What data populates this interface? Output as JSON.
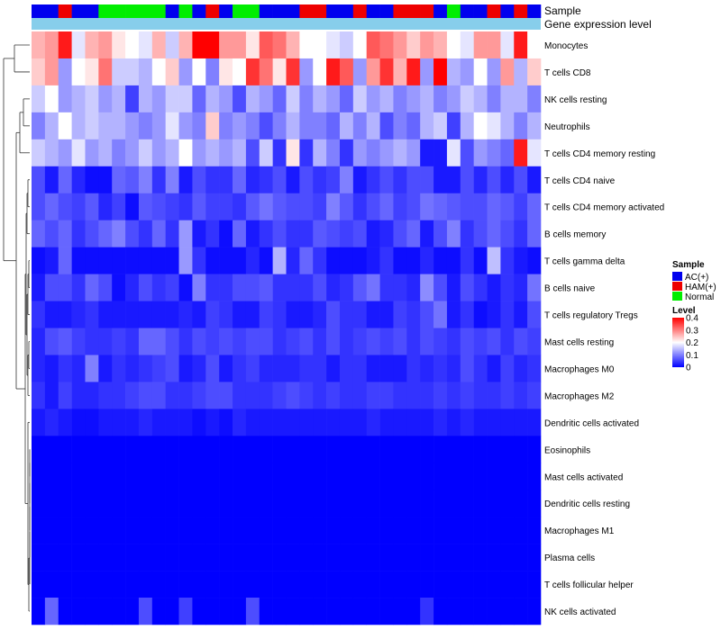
{
  "chart_data": {
    "type": "heatmap",
    "title": "",
    "annotation_tracks": [
      "Sample",
      "Gene expression level"
    ],
    "sample_groups": [
      "AC(+)",
      "AC(+)",
      "HAM(+)",
      "AC(+)",
      "AC(+)",
      "Normal",
      "Normal",
      "Normal",
      "Normal",
      "Normal",
      "AC(+)",
      "Normal",
      "AC(+)",
      "HAM(+)",
      "AC(+)",
      "Normal",
      "Normal",
      "AC(+)",
      "AC(+)",
      "AC(+)",
      "HAM(+)",
      "HAM(+)",
      "AC(+)",
      "AC(+)",
      "HAM(+)",
      "AC(+)",
      "AC(+)",
      "HAM(+)",
      "HAM(+)",
      "HAM(+)",
      "AC(+)",
      "Normal",
      "AC(+)",
      "AC(+)",
      "HAM(+)",
      "AC(+)",
      "HAM(+)",
      "AC(+)"
    ],
    "rows": [
      "Monocytes",
      "T cells CD8",
      "NK cells resting",
      "Neutrophils",
      "T cells CD4 memory resting",
      "T cells CD4 naive",
      "T cells CD4 memory activated",
      "B cells memory",
      "T cells gamma delta",
      "B cells naive",
      "T cells regulatory  Tregs",
      "Mast cells resting",
      "Macrophages M0",
      "Macrophages M2",
      "Dendritic cells activated",
      "Eosinophils",
      "Mast cells activated",
      "Dendritic cells resting",
      "Macrophages M1",
      "Plasma cells",
      "T cells follicular helper",
      "NK cells activated"
    ],
    "values": [
      [
        0.26,
        0.28,
        0.38,
        0.18,
        0.26,
        0.28,
        0.22,
        0.2,
        0.18,
        0.26,
        0.16,
        0.26,
        0.4,
        0.4,
        0.28,
        0.28,
        0.22,
        0.33,
        0.31,
        0.26,
        0.2,
        0.2,
        0.18,
        0.16,
        0.2,
        0.33,
        0.31,
        0.28,
        0.24,
        0.28,
        0.26,
        0.2,
        0.18,
        0.28,
        0.28,
        0.18,
        0.38,
        0.2
      ],
      [
        0.24,
        0.28,
        0.12,
        0.2,
        0.22,
        0.31,
        0.16,
        0.16,
        0.14,
        0.2,
        0.24,
        0.12,
        0.2,
        0.1,
        0.22,
        0.2,
        0.36,
        0.31,
        0.22,
        0.36,
        0.12,
        0.2,
        0.38,
        0.33,
        0.12,
        0.28,
        0.36,
        0.26,
        0.38,
        0.12,
        0.4,
        0.14,
        0.12,
        0.2,
        0.12,
        0.28,
        0.14,
        0.24
      ],
      [
        0.16,
        0.2,
        0.12,
        0.14,
        0.16,
        0.12,
        0.14,
        0.05,
        0.14,
        0.12,
        0.16,
        0.16,
        0.08,
        0.14,
        0.12,
        0.06,
        0.14,
        0.12,
        0.08,
        0.16,
        0.1,
        0.14,
        0.12,
        0.08,
        0.16,
        0.12,
        0.14,
        0.1,
        0.12,
        0.14,
        0.1,
        0.12,
        0.16,
        0.14,
        0.1,
        0.14,
        0.14,
        0.1
      ],
      [
        0.1,
        0.14,
        0.2,
        0.14,
        0.16,
        0.14,
        0.14,
        0.12,
        0.1,
        0.12,
        0.18,
        0.12,
        0.1,
        0.24,
        0.1,
        0.12,
        0.1,
        0.06,
        0.1,
        0.14,
        0.1,
        0.1,
        0.08,
        0.14,
        0.1,
        0.14,
        0.06,
        0.1,
        0.08,
        0.14,
        0.16,
        0.05,
        0.14,
        0.2,
        0.18,
        0.14,
        0.1,
        0.14
      ],
      [
        0.16,
        0.14,
        0.12,
        0.18,
        0.12,
        0.14,
        0.1,
        0.12,
        0.16,
        0.12,
        0.14,
        0.2,
        0.12,
        0.14,
        0.12,
        0.14,
        0.06,
        0.16,
        0.04,
        0.22,
        0.04,
        0.14,
        0.1,
        0.04,
        0.12,
        0.1,
        0.12,
        0.14,
        0.12,
        0.02,
        0.02,
        0.18,
        0.06,
        0.12,
        0.1,
        0.08,
        0.38,
        0.18
      ],
      [
        0.06,
        0.02,
        0.08,
        0.03,
        0.01,
        0.01,
        0.08,
        0.07,
        0.1,
        0.04,
        0.1,
        0.02,
        0.06,
        0.04,
        0.04,
        0.08,
        0.03,
        0.04,
        0.06,
        0.02,
        0.06,
        0.04,
        0.05,
        0.1,
        0.02,
        0.04,
        0.06,
        0.04,
        0.06,
        0.06,
        0.02,
        0.02,
        0.06,
        0.03,
        0.06,
        0.03,
        0.06,
        0.02
      ],
      [
        0.06,
        0.08,
        0.06,
        0.05,
        0.07,
        0.03,
        0.05,
        0.01,
        0.07,
        0.06,
        0.05,
        0.04,
        0.07,
        0.05,
        0.05,
        0.04,
        0.07,
        0.09,
        0.07,
        0.06,
        0.06,
        0.05,
        0.1,
        0.07,
        0.04,
        0.06,
        0.08,
        0.05,
        0.06,
        0.09,
        0.08,
        0.07,
        0.06,
        0.06,
        0.08,
        0.07,
        0.05,
        0.08
      ],
      [
        0.08,
        0.06,
        0.08,
        0.04,
        0.06,
        0.08,
        0.1,
        0.06,
        0.04,
        0.08,
        0.04,
        0.12,
        0.02,
        0.04,
        0.01,
        0.08,
        0.02,
        0.04,
        0.06,
        0.04,
        0.04,
        0.07,
        0.06,
        0.05,
        0.06,
        0.02,
        0.03,
        0.06,
        0.08,
        0.02,
        0.06,
        0.1,
        0.04,
        0.06,
        0.08,
        0.06,
        0.04,
        0.08
      ],
      [
        0.01,
        0.02,
        0.08,
        0.01,
        0.01,
        0.01,
        0.01,
        0.01,
        0.01,
        0.01,
        0.01,
        0.12,
        0.04,
        0.01,
        0.01,
        0.01,
        0.03,
        0.01,
        0.14,
        0.03,
        0.08,
        0.04,
        0.01,
        0.01,
        0.01,
        0.02,
        0.04,
        0.01,
        0.01,
        0.03,
        0.01,
        0.01,
        0.04,
        0.01,
        0.15,
        0.04,
        0.02,
        0.01
      ],
      [
        0.02,
        0.06,
        0.06,
        0.04,
        0.08,
        0.06,
        0.01,
        0.03,
        0.06,
        0.04,
        0.05,
        0.01,
        0.1,
        0.04,
        0.04,
        0.06,
        0.06,
        0.07,
        0.04,
        0.04,
        0.04,
        0.06,
        0.03,
        0.04,
        0.07,
        0.09,
        0.04,
        0.04,
        0.03,
        0.11,
        0.06,
        0.02,
        0.06,
        0.04,
        0.02,
        0.04,
        0.03,
        0.09
      ],
      [
        0.04,
        0.02,
        0.02,
        0.03,
        0.04,
        0.02,
        0.02,
        0.02,
        0.02,
        0.02,
        0.02,
        0.03,
        0.02,
        0.05,
        0.04,
        0.02,
        0.02,
        0.05,
        0.04,
        0.02,
        0.02,
        0.03,
        0.06,
        0.04,
        0.04,
        0.02,
        0.02,
        0.05,
        0.04,
        0.06,
        0.09,
        0.02,
        0.04,
        0.01,
        0.02,
        0.04,
        0.02,
        0.06
      ],
      [
        0.03,
        0.06,
        0.07,
        0.05,
        0.04,
        0.04,
        0.05,
        0.04,
        0.08,
        0.08,
        0.06,
        0.04,
        0.06,
        0.05,
        0.06,
        0.05,
        0.06,
        0.06,
        0.04,
        0.05,
        0.06,
        0.04,
        0.06,
        0.04,
        0.05,
        0.06,
        0.05,
        0.06,
        0.04,
        0.06,
        0.05,
        0.04,
        0.06,
        0.05,
        0.06,
        0.04,
        0.06,
        0.05
      ],
      [
        0.03,
        0.02,
        0.04,
        0.03,
        0.1,
        0.02,
        0.04,
        0.03,
        0.04,
        0.05,
        0.06,
        0.02,
        0.03,
        0.06,
        0.02,
        0.04,
        0.05,
        0.03,
        0.03,
        0.03,
        0.04,
        0.04,
        0.02,
        0.04,
        0.04,
        0.02,
        0.02,
        0.02,
        0.04,
        0.03,
        0.04,
        0.03,
        0.06,
        0.04,
        0.02,
        0.05,
        0.03,
        0.04
      ],
      [
        0.04,
        0.02,
        0.05,
        0.03,
        0.03,
        0.04,
        0.04,
        0.05,
        0.06,
        0.06,
        0.04,
        0.04,
        0.05,
        0.06,
        0.06,
        0.04,
        0.04,
        0.04,
        0.05,
        0.06,
        0.05,
        0.04,
        0.05,
        0.04,
        0.04,
        0.05,
        0.05,
        0.04,
        0.04,
        0.04,
        0.05,
        0.04,
        0.05,
        0.04,
        0.04,
        0.05,
        0.04,
        0.05
      ],
      [
        0.02,
        0.03,
        0.02,
        0.01,
        0.01,
        0.02,
        0.02,
        0.02,
        0.03,
        0.02,
        0.02,
        0.02,
        0.01,
        0.02,
        0.01,
        0.03,
        0.02,
        0.02,
        0.02,
        0.02,
        0.02,
        0.02,
        0.02,
        0.02,
        0.02,
        0.03,
        0.02,
        0.02,
        0.02,
        0.02,
        0.03,
        0.02,
        0.03,
        0.02,
        0.02,
        0.02,
        0.02,
        0.02
      ],
      [
        0,
        0,
        0,
        0,
        0,
        0,
        0,
        0,
        0,
        0,
        0,
        0,
        0,
        0,
        0,
        0,
        0,
        0,
        0,
        0,
        0,
        0,
        0,
        0,
        0,
        0,
        0,
        0,
        0,
        0,
        0,
        0,
        0,
        0,
        0,
        0,
        0,
        0
      ],
      [
        0,
        0,
        0,
        0,
        0,
        0,
        0,
        0,
        0,
        0,
        0,
        0,
        0,
        0,
        0,
        0,
        0,
        0,
        0,
        0,
        0,
        0,
        0,
        0,
        0,
        0,
        0,
        0,
        0,
        0,
        0,
        0,
        0,
        0,
        0,
        0,
        0,
        0
      ],
      [
        0,
        0,
        0,
        0,
        0,
        0,
        0,
        0,
        0,
        0,
        0,
        0,
        0,
        0,
        0,
        0,
        0,
        0,
        0,
        0,
        0,
        0,
        0,
        0,
        0,
        0,
        0,
        0,
        0,
        0,
        0,
        0,
        0,
        0,
        0,
        0,
        0,
        0
      ],
      [
        0,
        0,
        0,
        0,
        0,
        0,
        0,
        0,
        0,
        0,
        0,
        0,
        0,
        0,
        0,
        0,
        0,
        0,
        0,
        0,
        0,
        0,
        0,
        0,
        0,
        0,
        0,
        0,
        0,
        0,
        0,
        0,
        0,
        0,
        0,
        0,
        0,
        0
      ],
      [
        0,
        0,
        0,
        0,
        0,
        0,
        0,
        0,
        0,
        0,
        0,
        0,
        0,
        0,
        0,
        0,
        0,
        0,
        0,
        0,
        0,
        0,
        0,
        0,
        0,
        0,
        0,
        0,
        0,
        0,
        0,
        0,
        0,
        0,
        0,
        0,
        0,
        0
      ],
      [
        0,
        0,
        0,
        0,
        0,
        0,
        0,
        0,
        0,
        0,
        0,
        0,
        0,
        0,
        0,
        0,
        0,
        0,
        0,
        0,
        0,
        0,
        0,
        0,
        0,
        0,
        0,
        0,
        0,
        0,
        0,
        0,
        0,
        0,
        0,
        0,
        0,
        0
      ],
      [
        0,
        0.08,
        0,
        0,
        0,
        0,
        0,
        0,
        0.06,
        0,
        0,
        0.05,
        0,
        0,
        0,
        0,
        0.06,
        0,
        0,
        0,
        0,
        0,
        0,
        0,
        0,
        0,
        0,
        0,
        0,
        0.04,
        0,
        0,
        0,
        0,
        0,
        0,
        0,
        0
      ]
    ],
    "legend": {
      "sample_title": "Sample",
      "sample_items": [
        {
          "label": "AC(+)",
          "color": "#0000ee"
        },
        {
          "label": "HAM(+)",
          "color": "#ee0000"
        },
        {
          "label": "Normal",
          "color": "#00ee00"
        }
      ],
      "level_title": "Level",
      "level_ticks": [
        "0.4",
        "0.3",
        "0.2",
        "0.1",
        "0"
      ],
      "level_min": 0,
      "level_max": 0.4
    },
    "colors": {
      "low": "#0000ff",
      "mid": "#ffffff",
      "high": "#ff0000",
      "gene_expression_track": "#87ceeb"
    }
  }
}
